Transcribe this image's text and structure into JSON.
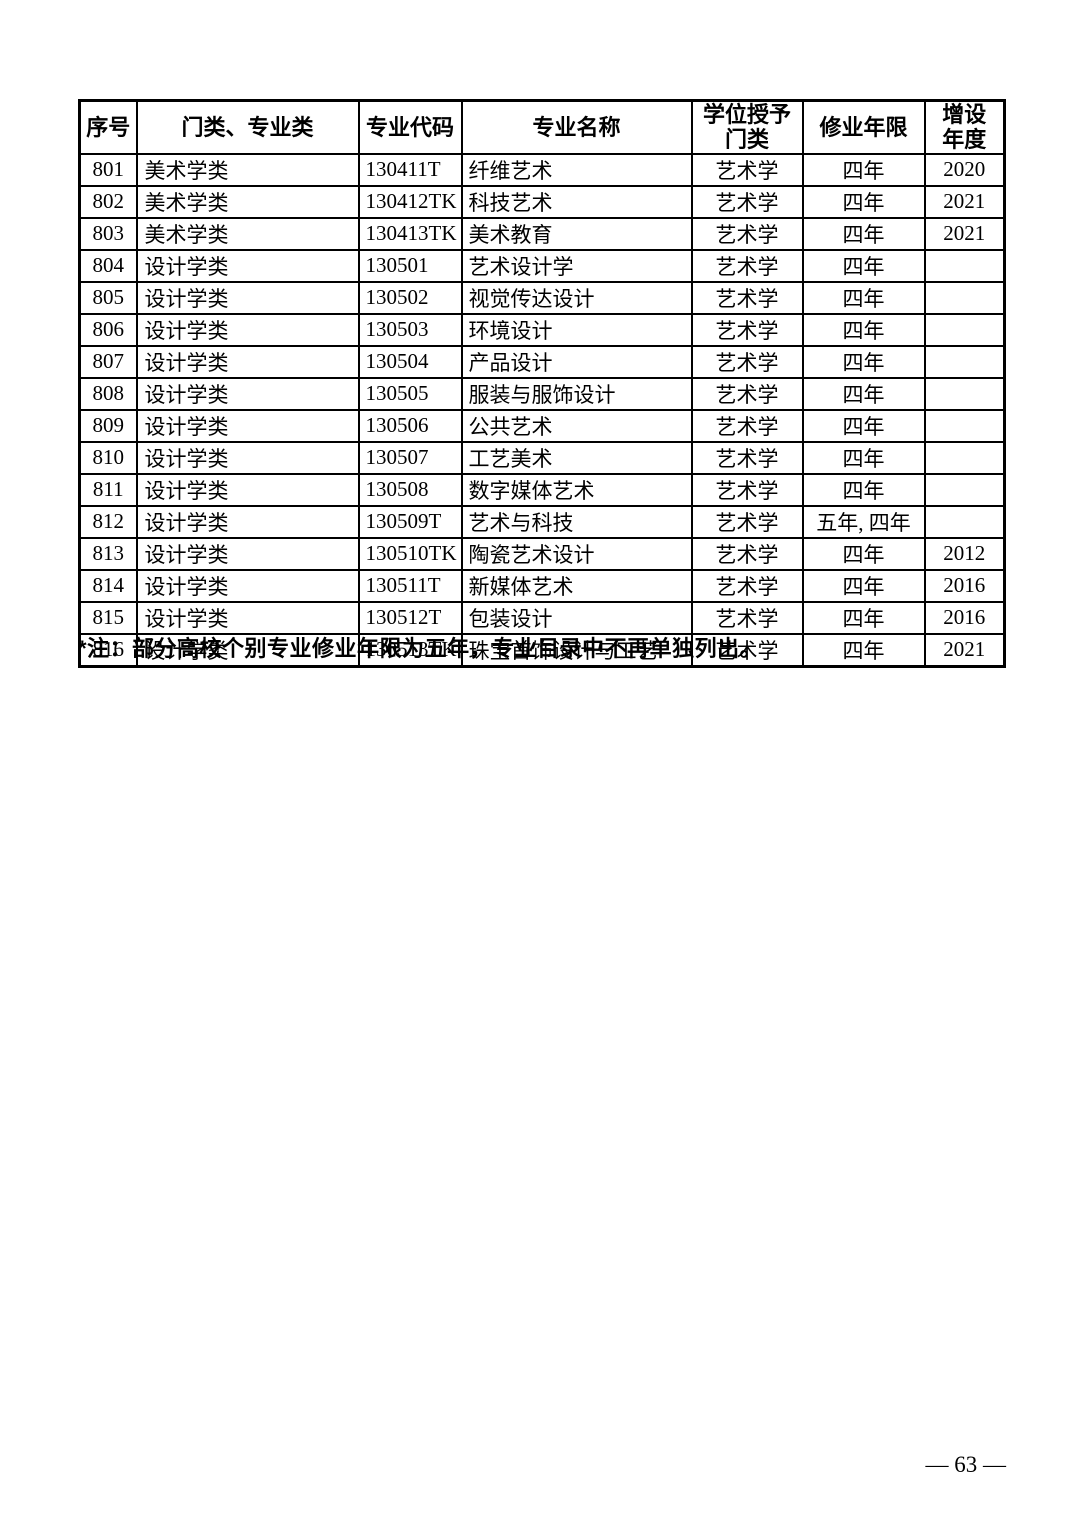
{
  "table": {
    "headers": {
      "seq": "序号",
      "category": "门类、专业类",
      "code": "专业代码",
      "name": "专业名称",
      "degree": "学位授予\n门类",
      "duration": "修业年限",
      "year": "增设\n年度"
    },
    "rows": [
      {
        "seq": "801",
        "category": "美术学类",
        "code": "130411T",
        "name": "纤维艺术",
        "degree": "艺术学",
        "duration": "四年",
        "year": "2020"
      },
      {
        "seq": "802",
        "category": "美术学类",
        "code": "130412TK",
        "name": "科技艺术",
        "degree": "艺术学",
        "duration": "四年",
        "year": "2021"
      },
      {
        "seq": "803",
        "category": "美术学类",
        "code": "130413TK",
        "name": "美术教育",
        "degree": "艺术学",
        "duration": "四年",
        "year": "2021"
      },
      {
        "seq": "804",
        "category": "设计学类",
        "code": "130501",
        "name": "艺术设计学",
        "degree": "艺术学",
        "duration": "四年",
        "year": ""
      },
      {
        "seq": "805",
        "category": "设计学类",
        "code": "130502",
        "name": "视觉传达设计",
        "degree": "艺术学",
        "duration": "四年",
        "year": ""
      },
      {
        "seq": "806",
        "category": "设计学类",
        "code": "130503",
        "name": "环境设计",
        "degree": "艺术学",
        "duration": "四年",
        "year": ""
      },
      {
        "seq": "807",
        "category": "设计学类",
        "code": "130504",
        "name": "产品设计",
        "degree": "艺术学",
        "duration": "四年",
        "year": ""
      },
      {
        "seq": "808",
        "category": "设计学类",
        "code": "130505",
        "name": "服装与服饰设计",
        "degree": "艺术学",
        "duration": "四年",
        "year": ""
      },
      {
        "seq": "809",
        "category": "设计学类",
        "code": "130506",
        "name": "公共艺术",
        "degree": "艺术学",
        "duration": "四年",
        "year": ""
      },
      {
        "seq": "810",
        "category": "设计学类",
        "code": "130507",
        "name": "工艺美术",
        "degree": "艺术学",
        "duration": "四年",
        "year": ""
      },
      {
        "seq": "811",
        "category": "设计学类",
        "code": "130508",
        "name": "数字媒体艺术",
        "degree": "艺术学",
        "duration": "四年",
        "year": ""
      },
      {
        "seq": "812",
        "category": "设计学类",
        "code": "130509T",
        "name": "艺术与科技",
        "degree": "艺术学",
        "duration": "五年, 四年",
        "year": ""
      },
      {
        "seq": "813",
        "category": "设计学类",
        "code": "130510TK",
        "name": "陶瓷艺术设计",
        "degree": "艺术学",
        "duration": "四年",
        "year": "2012"
      },
      {
        "seq": "814",
        "category": "设计学类",
        "code": "130511T",
        "name": "新媒体艺术",
        "degree": "艺术学",
        "duration": "四年",
        "year": "2016"
      },
      {
        "seq": "815",
        "category": "设计学类",
        "code": "130512T",
        "name": "包装设计",
        "degree": "艺术学",
        "duration": "四年",
        "year": "2016"
      },
      {
        "seq": "816",
        "category": "设计学类",
        "code": "130513TK",
        "name": "珠宝首饰设计与工艺",
        "degree": "艺术学",
        "duration": "四年",
        "year": "2021"
      }
    ]
  },
  "note": "*注：部分高校个别专业修业年限为五年，专业目录中不再单独列出。",
  "page_number": "— 63 —"
}
